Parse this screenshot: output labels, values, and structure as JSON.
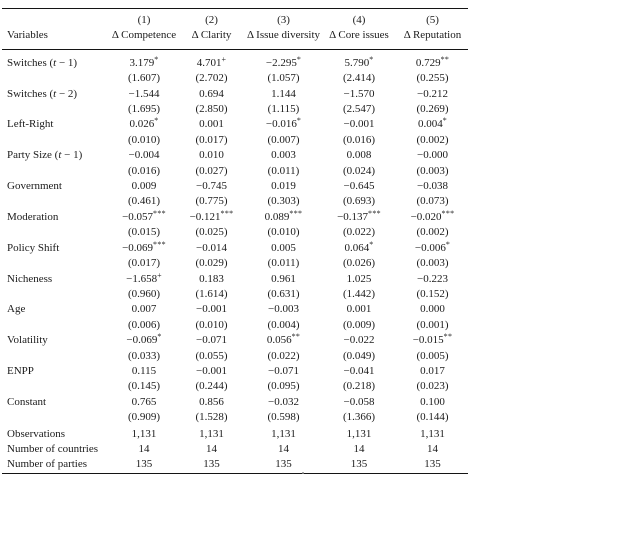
{
  "table": {
    "model_numbers": [
      "(1)",
      "(2)",
      "(3)",
      "(4)",
      "(5)"
    ],
    "variables_header": "Variables",
    "dep_var_headers": [
      "Δ Competence",
      "Δ Clarity",
      "Δ Issue diversity",
      "Δ Core issues",
      "Δ Reputation"
    ],
    "rows": [
      {
        "label": "Switches (t − 1)",
        "coefs": [
          "3.179",
          "4.701",
          "−2.295",
          "5.790",
          "0.729"
        ],
        "sigs": [
          "*",
          "+",
          "*",
          "*",
          "**"
        ],
        "ses": [
          "(1.607)",
          "(2.702)",
          "(1.057)",
          "(2.414)",
          "(0.255)"
        ]
      },
      {
        "label": "Switches (t − 2)",
        "coefs": [
          "−1.544",
          "0.694",
          "1.144",
          "−1.570",
          "−0.212"
        ],
        "sigs": [
          "",
          "",
          "",
          "",
          ""
        ],
        "ses": [
          "(1.695)",
          "(2.850)",
          "(1.115)",
          "(2.547)",
          "(0.269)"
        ]
      },
      {
        "label": "Left-Right",
        "coefs": [
          "0.026",
          "0.001",
          "−0.016",
          "−0.001",
          "0.004"
        ],
        "sigs": [
          "*",
          "",
          "*",
          "",
          "*"
        ],
        "ses": [
          "(0.010)",
          "(0.017)",
          "(0.007)",
          "(0.016)",
          "(0.002)"
        ]
      },
      {
        "label": "Party Size (t − 1)",
        "coefs": [
          "−0.004",
          "0.010",
          "0.003",
          "0.008",
          "−0.000"
        ],
        "sigs": [
          "",
          "",
          "",
          "",
          ""
        ],
        "ses": [
          "(0.016)",
          "(0.027)",
          "(0.011)",
          "(0.024)",
          "(0.003)"
        ]
      },
      {
        "label": "Government",
        "coefs": [
          "0.009",
          "−0.745",
          "0.019",
          "−0.645",
          "−0.038"
        ],
        "sigs": [
          "",
          "",
          "",
          "",
          ""
        ],
        "ses": [
          "(0.461)",
          "(0.775)",
          "(0.303)",
          "(0.693)",
          "(0.073)"
        ]
      },
      {
        "label": "Moderation",
        "coefs": [
          "−0.057",
          "−0.121",
          "0.089",
          "−0.137",
          "−0.020"
        ],
        "sigs": [
          "***",
          "***",
          "***",
          "***",
          "***"
        ],
        "ses": [
          "(0.015)",
          "(0.025)",
          "(0.010)",
          "(0.022)",
          "(0.002)"
        ]
      },
      {
        "label": "Policy Shift",
        "coefs": [
          "−0.069",
          "−0.014",
          "0.005",
          "0.064",
          "−0.006"
        ],
        "sigs": [
          "***",
          "",
          "",
          "*",
          "*"
        ],
        "ses": [
          "(0.017)",
          "(0.029)",
          "(0.011)",
          "(0.026)",
          "(0.003)"
        ]
      },
      {
        "label": "Nicheness",
        "coefs": [
          "−1.658",
          "0.183",
          "0.961",
          "1.025",
          "−0.223"
        ],
        "sigs": [
          "+",
          "",
          "",
          "",
          ""
        ],
        "ses": [
          "(0.960)",
          "(1.614)",
          "(0.631)",
          "(1.442)",
          "(0.152)"
        ]
      },
      {
        "label": "Age",
        "coefs": [
          "0.007",
          "−0.001",
          "−0.003",
          "0.001",
          "0.000"
        ],
        "sigs": [
          "",
          "",
          "",
          "",
          ""
        ],
        "ses": [
          "(0.006)",
          "(0.010)",
          "(0.004)",
          "(0.009)",
          "(0.001)"
        ]
      },
      {
        "label": "Volatility",
        "coefs": [
          "−0.069",
          "−0.071",
          "0.056",
          "−0.022",
          "−0.015"
        ],
        "sigs": [
          "*",
          "",
          "**",
          "",
          "**"
        ],
        "ses": [
          "(0.033)",
          "(0.055)",
          "(0.022)",
          "(0.049)",
          "(0.005)"
        ]
      },
      {
        "label": "ENPP",
        "coefs": [
          "0.115",
          "−0.001",
          "−0.071",
          "−0.041",
          "0.017"
        ],
        "sigs": [
          "",
          "",
          "",
          "",
          ""
        ],
        "ses": [
          "(0.145)",
          "(0.244)",
          "(0.095)",
          "(0.218)",
          "(0.023)"
        ]
      },
      {
        "label": "Constant",
        "coefs": [
          "0.765",
          "0.856",
          "−0.032",
          "−0.058",
          "0.100"
        ],
        "sigs": [
          "",
          "",
          "",
          "",
          ""
        ],
        "ses": [
          "(0.909)",
          "(1.528)",
          "(0.598)",
          "(1.366)",
          "(0.144)"
        ]
      }
    ],
    "summary_rows": [
      {
        "label": "Observations",
        "values": [
          "1,131",
          "1,131",
          "1,131",
          "1,131",
          "1,131"
        ]
      },
      {
        "label": "Number of countries",
        "values": [
          "14",
          "14",
          "14",
          "14",
          "14"
        ]
      },
      {
        "label": "Number of parties",
        "values": [
          "135",
          "135",
          "135",
          "135",
          "135"
        ]
      }
    ]
  },
  "colors": {
    "text": "#1b1b1b",
    "rule": "#141414",
    "background": "#ffffff"
  }
}
